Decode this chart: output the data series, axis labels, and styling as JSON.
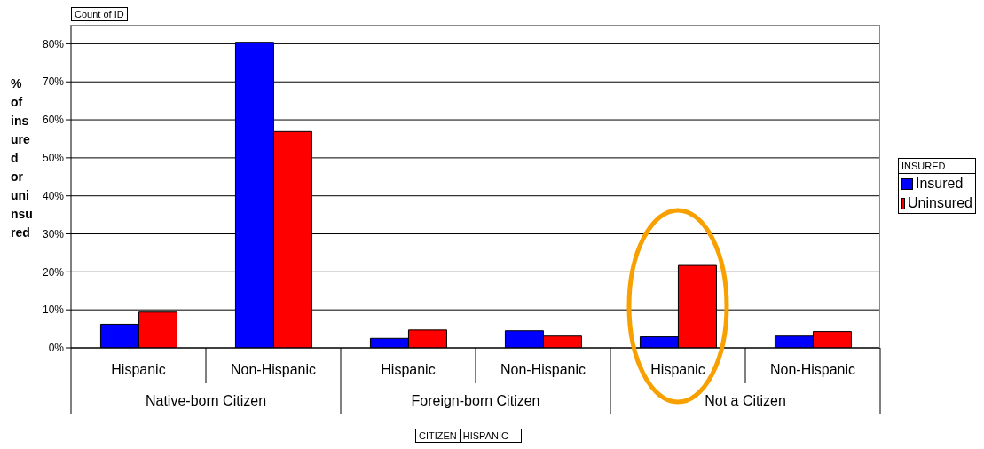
{
  "chart_data": {
    "type": "bar",
    "ylabel": "% of insured or uninsured",
    "legend_title": "INSURED",
    "categories": [
      "Hispanic",
      "Non-Hispanic",
      "Hispanic",
      "Non-Hispanic",
      "Hispanic",
      "Non-Hispanic"
    ],
    "series": [
      {
        "name": "Insured",
        "color": "#0000ff",
        "values": [
          6.2,
          80.4,
          2.5,
          4.5,
          2.9,
          3.1
        ]
      },
      {
        "name": "Uninsured",
        "color": "#ff0000",
        "values": [
          9.4,
          56.9,
          4.7,
          3.1,
          21.7,
          4.3
        ]
      }
    ],
    "ylim": [
      0,
      85
    ],
    "yticks": [
      {
        "value": 0,
        "label": "0%"
      },
      {
        "value": 10,
        "label": "10%"
      },
      {
        "value": 20,
        "label": "20%"
      },
      {
        "value": 30,
        "label": "30%"
      },
      {
        "value": 40,
        "label": "40%"
      },
      {
        "value": 50,
        "label": "50%"
      },
      {
        "value": 60,
        "label": "60%"
      },
      {
        "value": 70,
        "label": "70%"
      },
      {
        "value": 80,
        "label": "80%"
      }
    ],
    "grid": "y",
    "legend": "right",
    "annotations": [
      "Count of ID",
      "CITIZEN",
      "HISPANIC",
      "Native-born Citizen",
      "Foreign-born Citizen",
      "Not a Citizen"
    ]
  }
}
